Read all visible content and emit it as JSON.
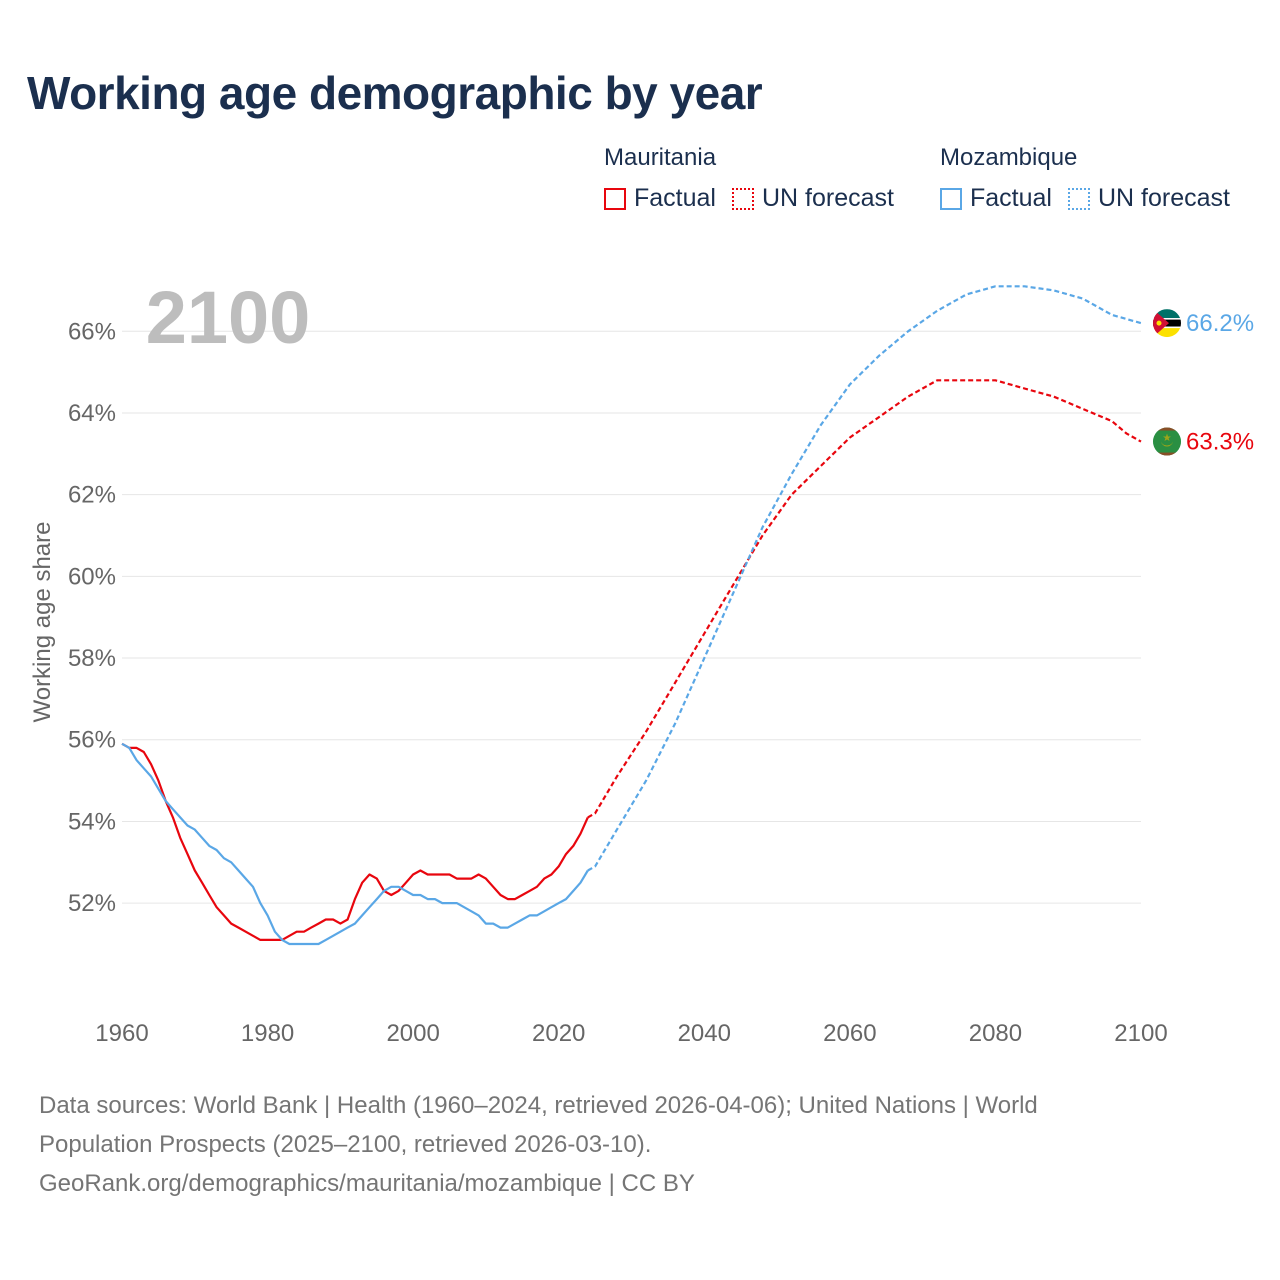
{
  "title": "Working age demographic by year",
  "legend": [
    {
      "country": "Mauritania",
      "factual_label": "Factual",
      "forecast_label": "UN forecast",
      "color": "#e8060e"
    },
    {
      "country": "Mozambique",
      "factual_label": "Factual",
      "forecast_label": "UN forecast",
      "color": "#5aa7e6"
    }
  ],
  "year_badge": "2100",
  "end_labels": {
    "Mauritania": "63.3%",
    "Mozambique": "66.2%"
  },
  "flags": {
    "Mauritania": "mauritania-flag",
    "Mozambique": "mozambique-flag"
  },
  "chart_data": {
    "type": "line",
    "title": "Working age demographic by year",
    "xlabel": "",
    "ylabel": "Working age share",
    "xlim": [
      1960,
      2100
    ],
    "ylim": [
      49.8,
      67.5
    ],
    "xticks": [
      1960,
      1980,
      2000,
      2020,
      2040,
      2060,
      2080,
      2100
    ],
    "yticks": [
      52,
      54,
      56,
      58,
      60,
      62,
      64,
      66
    ],
    "ytick_labels": [
      "52%",
      "54%",
      "56%",
      "58%",
      "60%",
      "62%",
      "64%",
      "66%"
    ],
    "xtick_labels": [
      "1960",
      "1980",
      "2000",
      "2020",
      "2040",
      "2060",
      "2080",
      "2100"
    ],
    "grid": true,
    "factual_range": [
      1960,
      2024
    ],
    "forecast_range": [
      2025,
      2100
    ],
    "series": [
      {
        "name": "Mauritania",
        "color": "#e8060e",
        "points": [
          [
            1960,
            55.9
          ],
          [
            1961,
            55.8
          ],
          [
            1962,
            55.8
          ],
          [
            1963,
            55.7
          ],
          [
            1964,
            55.4
          ],
          [
            1965,
            55.0
          ],
          [
            1966,
            54.5
          ],
          [
            1967,
            54.1
          ],
          [
            1968,
            53.6
          ],
          [
            1969,
            53.2
          ],
          [
            1970,
            52.8
          ],
          [
            1971,
            52.5
          ],
          [
            1972,
            52.2
          ],
          [
            1973,
            51.9
          ],
          [
            1974,
            51.7
          ],
          [
            1975,
            51.5
          ],
          [
            1976,
            51.4
          ],
          [
            1977,
            51.3
          ],
          [
            1978,
            51.2
          ],
          [
            1979,
            51.1
          ],
          [
            1980,
            51.1
          ],
          [
            1981,
            51.1
          ],
          [
            1982,
            51.1
          ],
          [
            1983,
            51.2
          ],
          [
            1984,
            51.3
          ],
          [
            1985,
            51.3
          ],
          [
            1986,
            51.4
          ],
          [
            1987,
            51.5
          ],
          [
            1988,
            51.6
          ],
          [
            1989,
            51.6
          ],
          [
            1990,
            51.5
          ],
          [
            1991,
            51.6
          ],
          [
            1992,
            52.1
          ],
          [
            1993,
            52.5
          ],
          [
            1994,
            52.7
          ],
          [
            1995,
            52.6
          ],
          [
            1996,
            52.3
          ],
          [
            1997,
            52.2
          ],
          [
            1998,
            52.3
          ],
          [
            1999,
            52.5
          ],
          [
            2000,
            52.7
          ],
          [
            2001,
            52.8
          ],
          [
            2002,
            52.7
          ],
          [
            2003,
            52.7
          ],
          [
            2004,
            52.7
          ],
          [
            2005,
            52.7
          ],
          [
            2006,
            52.6
          ],
          [
            2007,
            52.6
          ],
          [
            2008,
            52.6
          ],
          [
            2009,
            52.7
          ],
          [
            2010,
            52.6
          ],
          [
            2011,
            52.4
          ],
          [
            2012,
            52.2
          ],
          [
            2013,
            52.1
          ],
          [
            2014,
            52.1
          ],
          [
            2015,
            52.2
          ],
          [
            2016,
            52.3
          ],
          [
            2017,
            52.4
          ],
          [
            2018,
            52.6
          ],
          [
            2019,
            52.7
          ],
          [
            2020,
            52.9
          ],
          [
            2021,
            53.2
          ],
          [
            2022,
            53.4
          ],
          [
            2023,
            53.7
          ],
          [
            2024,
            54.1
          ],
          [
            2025,
            54.2
          ],
          [
            2028,
            55.1
          ],
          [
            2032,
            56.2
          ],
          [
            2036,
            57.4
          ],
          [
            2040,
            58.6
          ],
          [
            2044,
            59.8
          ],
          [
            2048,
            61.0
          ],
          [
            2052,
            62.0
          ],
          [
            2056,
            62.7
          ],
          [
            2060,
            63.4
          ],
          [
            2064,
            63.9
          ],
          [
            2068,
            64.4
          ],
          [
            2072,
            64.8
          ],
          [
            2076,
            64.8
          ],
          [
            2080,
            64.8
          ],
          [
            2084,
            64.6
          ],
          [
            2088,
            64.4
          ],
          [
            2092,
            64.1
          ],
          [
            2096,
            63.8
          ],
          [
            2098,
            63.5
          ],
          [
            2100,
            63.3
          ]
        ]
      },
      {
        "name": "Mozambique",
        "color": "#5aa7e6",
        "points": [
          [
            1960,
            55.9
          ],
          [
            1961,
            55.8
          ],
          [
            1962,
            55.5
          ],
          [
            1963,
            55.3
          ],
          [
            1964,
            55.1
          ],
          [
            1965,
            54.8
          ],
          [
            1966,
            54.5
          ],
          [
            1967,
            54.3
          ],
          [
            1968,
            54.1
          ],
          [
            1969,
            53.9
          ],
          [
            1970,
            53.8
          ],
          [
            1971,
            53.6
          ],
          [
            1972,
            53.4
          ],
          [
            1973,
            53.3
          ],
          [
            1974,
            53.1
          ],
          [
            1975,
            53.0
          ],
          [
            1976,
            52.8
          ],
          [
            1977,
            52.6
          ],
          [
            1978,
            52.4
          ],
          [
            1979,
            52.0
          ],
          [
            1980,
            51.7
          ],
          [
            1981,
            51.3
          ],
          [
            1982,
            51.1
          ],
          [
            1983,
            51.0
          ],
          [
            1984,
            51.0
          ],
          [
            1985,
            51.0
          ],
          [
            1986,
            51.0
          ],
          [
            1987,
            51.0
          ],
          [
            1988,
            51.1
          ],
          [
            1989,
            51.2
          ],
          [
            1990,
            51.3
          ],
          [
            1991,
            51.4
          ],
          [
            1992,
            51.5
          ],
          [
            1993,
            51.7
          ],
          [
            1994,
            51.9
          ],
          [
            1995,
            52.1
          ],
          [
            1996,
            52.3
          ],
          [
            1997,
            52.4
          ],
          [
            1998,
            52.4
          ],
          [
            1999,
            52.3
          ],
          [
            2000,
            52.2
          ],
          [
            2001,
            52.2
          ],
          [
            2002,
            52.1
          ],
          [
            2003,
            52.1
          ],
          [
            2004,
            52.0
          ],
          [
            2005,
            52.0
          ],
          [
            2006,
            52.0
          ],
          [
            2007,
            51.9
          ],
          [
            2008,
            51.8
          ],
          [
            2009,
            51.7
          ],
          [
            2010,
            51.5
          ],
          [
            2011,
            51.5
          ],
          [
            2012,
            51.4
          ],
          [
            2013,
            51.4
          ],
          [
            2014,
            51.5
          ],
          [
            2015,
            51.6
          ],
          [
            2016,
            51.7
          ],
          [
            2017,
            51.7
          ],
          [
            2018,
            51.8
          ],
          [
            2019,
            51.9
          ],
          [
            2020,
            52.0
          ],
          [
            2021,
            52.1
          ],
          [
            2022,
            52.3
          ],
          [
            2023,
            52.5
          ],
          [
            2024,
            52.8
          ],
          [
            2025,
            52.9
          ],
          [
            2028,
            53.8
          ],
          [
            2032,
            55.0
          ],
          [
            2036,
            56.4
          ],
          [
            2040,
            58.0
          ],
          [
            2044,
            59.6
          ],
          [
            2048,
            61.2
          ],
          [
            2052,
            62.5
          ],
          [
            2056,
            63.7
          ],
          [
            2060,
            64.7
          ],
          [
            2064,
            65.4
          ],
          [
            2068,
            66.0
          ],
          [
            2072,
            66.5
          ],
          [
            2076,
            66.9
          ],
          [
            2080,
            67.1
          ],
          [
            2084,
            67.1
          ],
          [
            2088,
            67.0
          ],
          [
            2092,
            66.8
          ],
          [
            2096,
            66.4
          ],
          [
            2098,
            66.3
          ],
          [
            2100,
            66.2
          ]
        ]
      }
    ]
  },
  "footer": {
    "line1": "Data sources: World Bank | Health (1960–2024, retrieved 2026-04-06); United Nations | World",
    "line2": "Population Prospects (2025–2100, retrieved 2026-03-10).",
    "line3": "GeoRank.org/demographics/mauritania/mozambique | CC BY"
  }
}
